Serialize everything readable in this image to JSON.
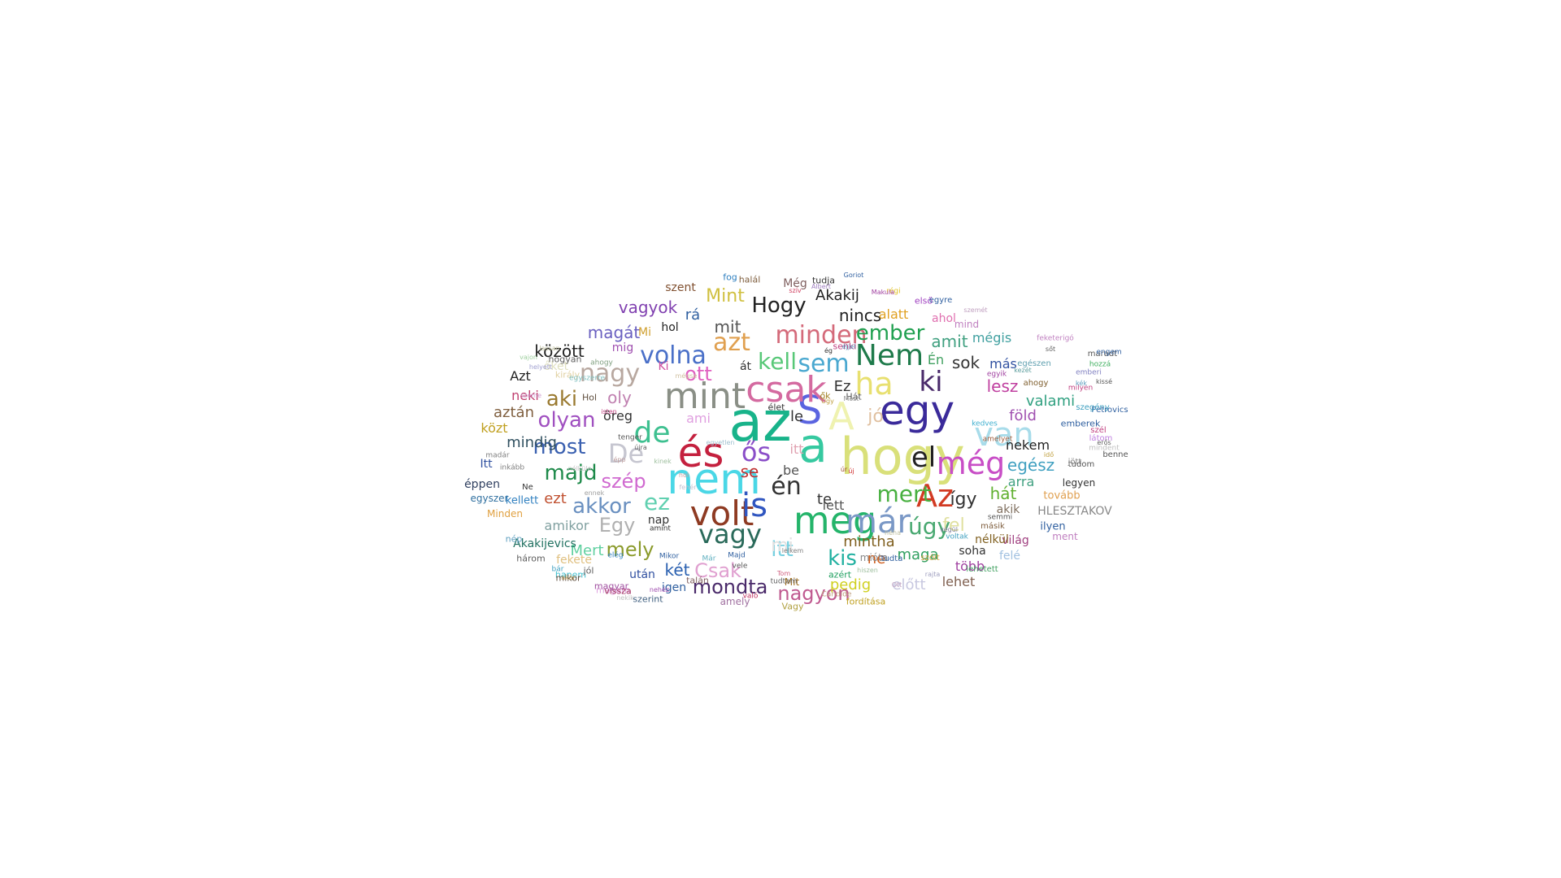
{
  "cloud": {
    "words": [
      {
        "t": "az",
        "c": "#18b38a"
      },
      {
        "t": "a",
        "c": "#36c9a0"
      },
      {
        "t": "hogy",
        "c": "#d9e07a"
      },
      {
        "t": "nem",
        "c": "#4ad7e6"
      },
      {
        "t": "és",
        "c": "#c4203e"
      },
      {
        "t": "egy",
        "c": "#3a2a9a"
      },
      {
        "t": "S",
        "c": "#5a64e0"
      },
      {
        "t": "A",
        "c": "#eff2b0"
      },
      {
        "t": "csak",
        "c": "#d46aa0"
      },
      {
        "t": "mint",
        "c": "#8a8f86"
      },
      {
        "t": "volt",
        "c": "#8e3a22"
      },
      {
        "t": "meg",
        "c": "#24b46a"
      },
      {
        "t": "is",
        "c": "#3056c0"
      },
      {
        "t": "már",
        "c": "#7a98c6"
      },
      {
        "t": "Az",
        "c": "#d23a22"
      },
      {
        "t": "még",
        "c": "#c84ec6"
      },
      {
        "t": "van",
        "c": "#a8dcea"
      },
      {
        "t": "ha",
        "c": "#e8e070"
      },
      {
        "t": "Nem",
        "c": "#1e7a4a"
      },
      {
        "t": "de",
        "c": "#3ec090"
      },
      {
        "t": "De",
        "c": "#c6c6d0"
      },
      {
        "t": "ős",
        "c": "#8a4ec8"
      },
      {
        "t": "volna",
        "c": "#4a70c8"
      },
      {
        "t": "minden",
        "c": "#d46a7a"
      },
      {
        "t": "vagy",
        "c": "#2a6a5a"
      },
      {
        "t": "ki",
        "c": "#4a2a6a"
      },
      {
        "t": "el",
        "c": "#222222"
      },
      {
        "t": "azt",
        "c": "#e0a050"
      },
      {
        "t": "nagy",
        "c": "#b8a8a0"
      },
      {
        "t": "sem",
        "c": "#4aa8d0"
      },
      {
        "t": "kell",
        "c": "#58c878"
      },
      {
        "t": "Hogy",
        "c": "#222222"
      },
      {
        "t": "én",
        "c": "#333333"
      },
      {
        "t": "mert",
        "c": "#48b040"
      },
      {
        "t": "úgy",
        "c": "#48a870"
      },
      {
        "t": "most",
        "c": "#3a60b0"
      },
      {
        "t": "olyan",
        "c": "#a050c0"
      },
      {
        "t": "ez",
        "c": "#60d0b0"
      },
      {
        "t": "akkor",
        "c": "#6a90c0"
      },
      {
        "t": "majd",
        "c": "#1e8a4a"
      },
      {
        "t": "szép",
        "c": "#d06ad0"
      },
      {
        "t": "aki",
        "c": "#9a7a30"
      },
      {
        "t": "Egy",
        "c": "#b0b0b0"
      },
      {
        "t": "Csak",
        "c": "#e0a0d0"
      },
      {
        "t": "itt",
        "c": "#78d0e0"
      },
      {
        "t": "mondta",
        "c": "#4a2a6a"
      },
      {
        "t": "nagyon",
        "c": "#c05a90"
      },
      {
        "t": "kis",
        "c": "#20b0a0"
      },
      {
        "t": "mely",
        "c": "#8a9a2a"
      },
      {
        "t": "ember",
        "c": "#20a050"
      },
      {
        "t": "Mint",
        "c": "#d0c040"
      },
      {
        "t": "vagyok",
        "c": "#8040b0"
      },
      {
        "t": "ott",
        "c": "#e060c0"
      },
      {
        "t": "sok",
        "c": "#333333"
      },
      {
        "t": "mit",
        "c": "#555555"
      },
      {
        "t": "nincs",
        "c": "#222222"
      },
      {
        "t": "Akakij",
        "c": "#222222"
      },
      {
        "t": "amit",
        "c": "#40a080"
      },
      {
        "t": "lesz",
        "c": "#c040a0"
      },
      {
        "t": "egész",
        "c": "#40a0c0"
      },
      {
        "t": "föld",
        "c": "#a050b0"
      },
      {
        "t": "valami",
        "c": "#30a080"
      },
      {
        "t": "hát",
        "c": "#60b030"
      },
      {
        "t": "mindig",
        "c": "#305060"
      },
      {
        "t": "aztán",
        "c": "#806040"
      },
      {
        "t": "között",
        "c": "#222222"
      },
      {
        "t": "magát",
        "c": "#6a60c0"
      },
      {
        "t": "ezt",
        "c": "#c05030"
      },
      {
        "t": "mintha",
        "c": "#806020"
      },
      {
        "t": "maga",
        "c": "#30a060"
      },
      {
        "t": "két",
        "c": "#2a60b0"
      },
      {
        "t": "Mert",
        "c": "#60d0a0"
      },
      {
        "t": "pedig",
        "c": "#d0d020"
      },
      {
        "t": "előtt",
        "c": "#c8c8e0"
      },
      {
        "t": "lehet",
        "c": "#806050"
      },
      {
        "t": "több",
        "c": "#a040a0"
      },
      {
        "t": "itt",
        "c": "#e0a0b0"
      },
      {
        "t": "ne",
        "c": "#d06020"
      },
      {
        "t": "te",
        "c": "#333333"
      },
      {
        "t": "lett",
        "c": "#555555"
      },
      {
        "t": "se",
        "c": "#c03030"
      },
      {
        "t": "jó",
        "c": "#e0c0a0"
      },
      {
        "t": "mi",
        "c": "#e0e0e0"
      },
      {
        "t": "le",
        "c": "#333333"
      },
      {
        "t": "be",
        "c": "#555555"
      },
      {
        "t": "Ez",
        "c": "#333333"
      },
      {
        "t": "Én",
        "c": "#40a060"
      },
      {
        "t": "ahol",
        "c": "#e070b0"
      },
      {
        "t": "alatt",
        "c": "#e0a020"
      },
      {
        "t": "mégis",
        "c": "#40a0a0"
      },
      {
        "t": "más",
        "c": "#3050a0"
      },
      {
        "t": "nekem",
        "c": "#222222"
      },
      {
        "t": "arra",
        "c": "#40a080"
      },
      {
        "t": "így",
        "c": "#333333"
      },
      {
        "t": "fel",
        "c": "#e0e0a0"
      },
      {
        "t": "akik",
        "c": "#807060"
      },
      {
        "t": "soha",
        "c": "#333333"
      },
      {
        "t": "felé",
        "c": "#a0c0e0"
      },
      {
        "t": "világ",
        "c": "#a04080"
      },
      {
        "t": "nélkül",
        "c": "#806020"
      },
      {
        "t": "HLESZTAKOV",
        "c": "#888888"
      },
      {
        "t": "ilyen",
        "c": "#3060a0"
      },
      {
        "t": "tovább",
        "c": "#e0a050"
      },
      {
        "t": "legyen",
        "c": "#333333"
      },
      {
        "t": "Akakijevics",
        "c": "#207060"
      },
      {
        "t": "kellett",
        "c": "#3080c0"
      },
      {
        "t": "egyszer",
        "c": "#3070a0"
      },
      {
        "t": "éppen",
        "c": "#304060"
      },
      {
        "t": "Itt",
        "c": "#3050a0"
      },
      {
        "t": "közt",
        "c": "#c0a020"
      },
      {
        "t": "neki",
        "c": "#c04070"
      },
      {
        "t": "Azt",
        "c": "#222222"
      },
      {
        "t": "hol",
        "c": "#222222"
      },
      {
        "t": "rá",
        "c": "#3060a0"
      },
      {
        "t": "át",
        "c": "#333333"
      },
      {
        "t": "ami",
        "c": "#e0a0e0"
      },
      {
        "t": "amikor",
        "c": "#80a0a0"
      },
      {
        "t": "nap",
        "c": "#333333"
      },
      {
        "t": "után",
        "c": "#3050a0"
      },
      {
        "t": "igen",
        "c": "#3060a0"
      },
      {
        "t": "amely",
        "c": "#a070a0"
      },
      {
        "t": "mióta",
        "c": "#888888"
      },
      {
        "t": "fekete",
        "c": "#e0c080"
      },
      {
        "t": "három",
        "c": "#606060"
      },
      {
        "t": "Minden",
        "c": "#e0a040"
      },
      {
        "t": "nép",
        "c": "#60a0c0"
      },
      {
        "t": "öreg",
        "c": "#333333"
      },
      {
        "t": "mig",
        "c": "#a050b0"
      },
      {
        "t": "oly",
        "c": "#c080b0"
      },
      {
        "t": "őket",
        "c": "#e0e0c0"
      },
      {
        "t": "Ki",
        "c": "#d050a0"
      },
      {
        "t": "Mi",
        "c": "#d0a030"
      },
      {
        "t": "szent",
        "c": "#805030"
      },
      {
        "t": "fog",
        "c": "#3080c0"
      },
      {
        "t": "halál",
        "c": "#806040"
      },
      {
        "t": "tudja",
        "c": "#333333"
      },
      {
        "t": "Még",
        "c": "#806060"
      },
      {
        "t": "mind",
        "c": "#c080c0"
      },
      {
        "t": "egészen",
        "c": "#60a0b0"
      },
      {
        "t": "ahogy",
        "c": "#806030"
      },
      {
        "t": "emberek",
        "c": "#3060a0"
      },
      {
        "t": "tudom",
        "c": "#555555"
      },
      {
        "t": "ment",
        "c": "#c080c0"
      },
      {
        "t": "Petrovics",
        "c": "#3060a0"
      },
      {
        "t": "szegény",
        "c": "#40a0c0"
      },
      {
        "t": "Mit",
        "c": "#a07020"
      },
      {
        "t": "azért",
        "c": "#20a060"
      },
      {
        "t": "fordítása",
        "c": "#c0a020"
      },
      {
        "t": "Vagy",
        "c": "#b0a040"
      },
      {
        "t": "hanem",
        "c": "#40c0d0"
      },
      {
        "t": "mikor",
        "c": "#605040"
      },
      {
        "t": "magam",
        "c": "#e0a0e0"
      },
      {
        "t": "vissza",
        "c": "#a03060"
      },
      {
        "t": "szerint",
        "c": "#406080"
      },
      {
        "t": "magyar",
        "c": "#a050a0"
      },
      {
        "t": "új",
        "c": "#d03030"
      },
      {
        "t": "úr",
        "c": "#a05030"
      },
      {
        "t": "Hol",
        "c": "#605040"
      },
      {
        "t": "király",
        "c": "#e0d0a0"
      },
      {
        "t": "hogyan",
        "c": "#606060"
      },
      {
        "t": "jól",
        "c": "#606060"
      },
      {
        "t": "talán",
        "c": "#806060"
      },
      {
        "t": "élet",
        "c": "#333333"
      },
      {
        "t": "ők",
        "c": "#a08020"
      },
      {
        "t": "Hát",
        "c": "#555555"
      },
      {
        "t": "Most",
        "c": "#909090"
      },
      {
        "t": "senki",
        "c": "#c04080"
      },
      {
        "t": "ég",
        "c": "#333333"
      },
      {
        "t": "Már",
        "c": "#60b0c0"
      },
      {
        "t": "Majd",
        "c": "#3060a0"
      },
      {
        "t": "vele",
        "c": "#555555"
      },
      {
        "t": "régi",
        "c": "#e0c020"
      },
      {
        "t": "első",
        "c": "#a040c0"
      },
      {
        "t": "egyre",
        "c": "#3060a0"
      },
      {
        "t": "maradt",
        "c": "#555555"
      },
      {
        "t": "hozzá",
        "c": "#40b060"
      },
      {
        "t": "feketerigó",
        "c": "#c080c0"
      },
      {
        "t": "milyen",
        "c": "#c04080"
      },
      {
        "t": "emberi",
        "c": "#8080c0"
      },
      {
        "t": "engem",
        "c": "#3060a0"
      },
      {
        "t": "benne",
        "c": "#555555"
      },
      {
        "t": "mindent",
        "c": "#c0c0c0"
      },
      {
        "t": "jött",
        "c": "#808080"
      },
      {
        "t": "látom",
        "c": "#c080e0"
      },
      {
        "t": "szél",
        "c": "#c04080"
      },
      {
        "t": "erős",
        "c": "#606060"
      },
      {
        "t": "kék",
        "c": "#60a0c0"
      },
      {
        "t": "kissé",
        "c": "#555555"
      },
      {
        "t": "amelyet",
        "c": "#a06040"
      },
      {
        "t": "kedves",
        "c": "#40b0d0"
      },
      {
        "t": "egyik",
        "c": "#a040a0"
      },
      {
        "t": "szólt",
        "c": "#d0a040"
      },
      {
        "t": "tudta",
        "c": "#3060a0"
      },
      {
        "t": "lehetett",
        "c": "#40a060"
      },
      {
        "t": "másik",
        "c": "#806040"
      },
      {
        "t": "semmi",
        "c": "#555555"
      },
      {
        "t": "voltak",
        "c": "#40a0c0"
      },
      {
        "t": "Ne",
        "c": "#333333"
      },
      {
        "t": "inkább",
        "c": "#808080"
      },
      {
        "t": "madár",
        "c": "#808080"
      },
      {
        "t": "tenger",
        "c": "#555555"
      },
      {
        "t": "újra",
        "c": "#606060"
      },
      {
        "t": "amint",
        "c": "#333333"
      },
      {
        "t": "Candide",
        "c": "#c0a080"
      },
      {
        "t": "tudtam",
        "c": "#606060"
      },
      {
        "t": "való",
        "c": "#c03060"
      },
      {
        "t": "elég",
        "c": "#3080c0"
      },
      {
        "t": "Mikor",
        "c": "#3060a0"
      },
      {
        "t": "ahogy",
        "c": "#80a080"
      },
      {
        "t": "bár",
        "c": "#40a0c0"
      },
      {
        "t": "akár",
        "c": "#c0a060"
      },
      {
        "t": "nekik",
        "c": "#c0c0c0"
      },
      {
        "t": "nehéz",
        "c": "#a050b0"
      },
      {
        "t": "egyszerre",
        "c": "#80c0c0"
      },
      {
        "t": "Úgy",
        "c": "#c0a040"
      },
      {
        "t": "isten",
        "c": "#c04080"
      },
      {
        "t": "éjjel",
        "c": "#60a0c0"
      },
      {
        "t": "szív",
        "c": "#d04060"
      },
      {
        "t": "Albert",
        "c": "#a080c0"
      },
      {
        "t": "Goriot",
        "c": "#3060a0"
      },
      {
        "t": "Makula",
        "c": "#a040a0"
      },
      {
        "t": "szemét",
        "c": "#c0a0c0"
      },
      {
        "t": "kezét",
        "c": "#60a0a0"
      },
      {
        "t": "sőt",
        "c": "#606060"
      },
      {
        "t": "idő",
        "c": "#c0a040"
      },
      {
        "t": "Tom",
        "c": "#d06080"
      },
      {
        "t": "lelkem",
        "c": "#808080"
      },
      {
        "t": "hiszen",
        "c": "#a0c0a0"
      },
      {
        "t": "néha",
        "c": "#c0c0a0"
      },
      {
        "t": "végül",
        "c": "#8080a0"
      },
      {
        "t": "Ott",
        "c": "#c0a0c0"
      },
      {
        "t": "rajta",
        "c": "#a0a0c0"
      },
      {
        "t": "nélküle",
        "c": "#c0c0c0"
      },
      {
        "t": "ennek",
        "c": "#a0a0a0"
      },
      {
        "t": "épp",
        "c": "#c0a0a0"
      },
      {
        "t": "kinek",
        "c": "#a0c0a0"
      },
      {
        "t": "hol",
        "c": "#d0a0a0"
      },
      {
        "t": "helyett",
        "c": "#a0a0d0"
      },
      {
        "t": "lassan",
        "c": "#c0c0a0"
      },
      {
        "t": "vajon",
        "c": "#a0d0a0"
      },
      {
        "t": "szeme",
        "c": "#d0a0d0"
      },
      {
        "t": "fehér",
        "c": "#c0c0d0"
      },
      {
        "t": "egyetlen",
        "c": "#a0c0d0"
      },
      {
        "t": "mégse",
        "c": "#d0c0a0"
      }
    ]
  }
}
